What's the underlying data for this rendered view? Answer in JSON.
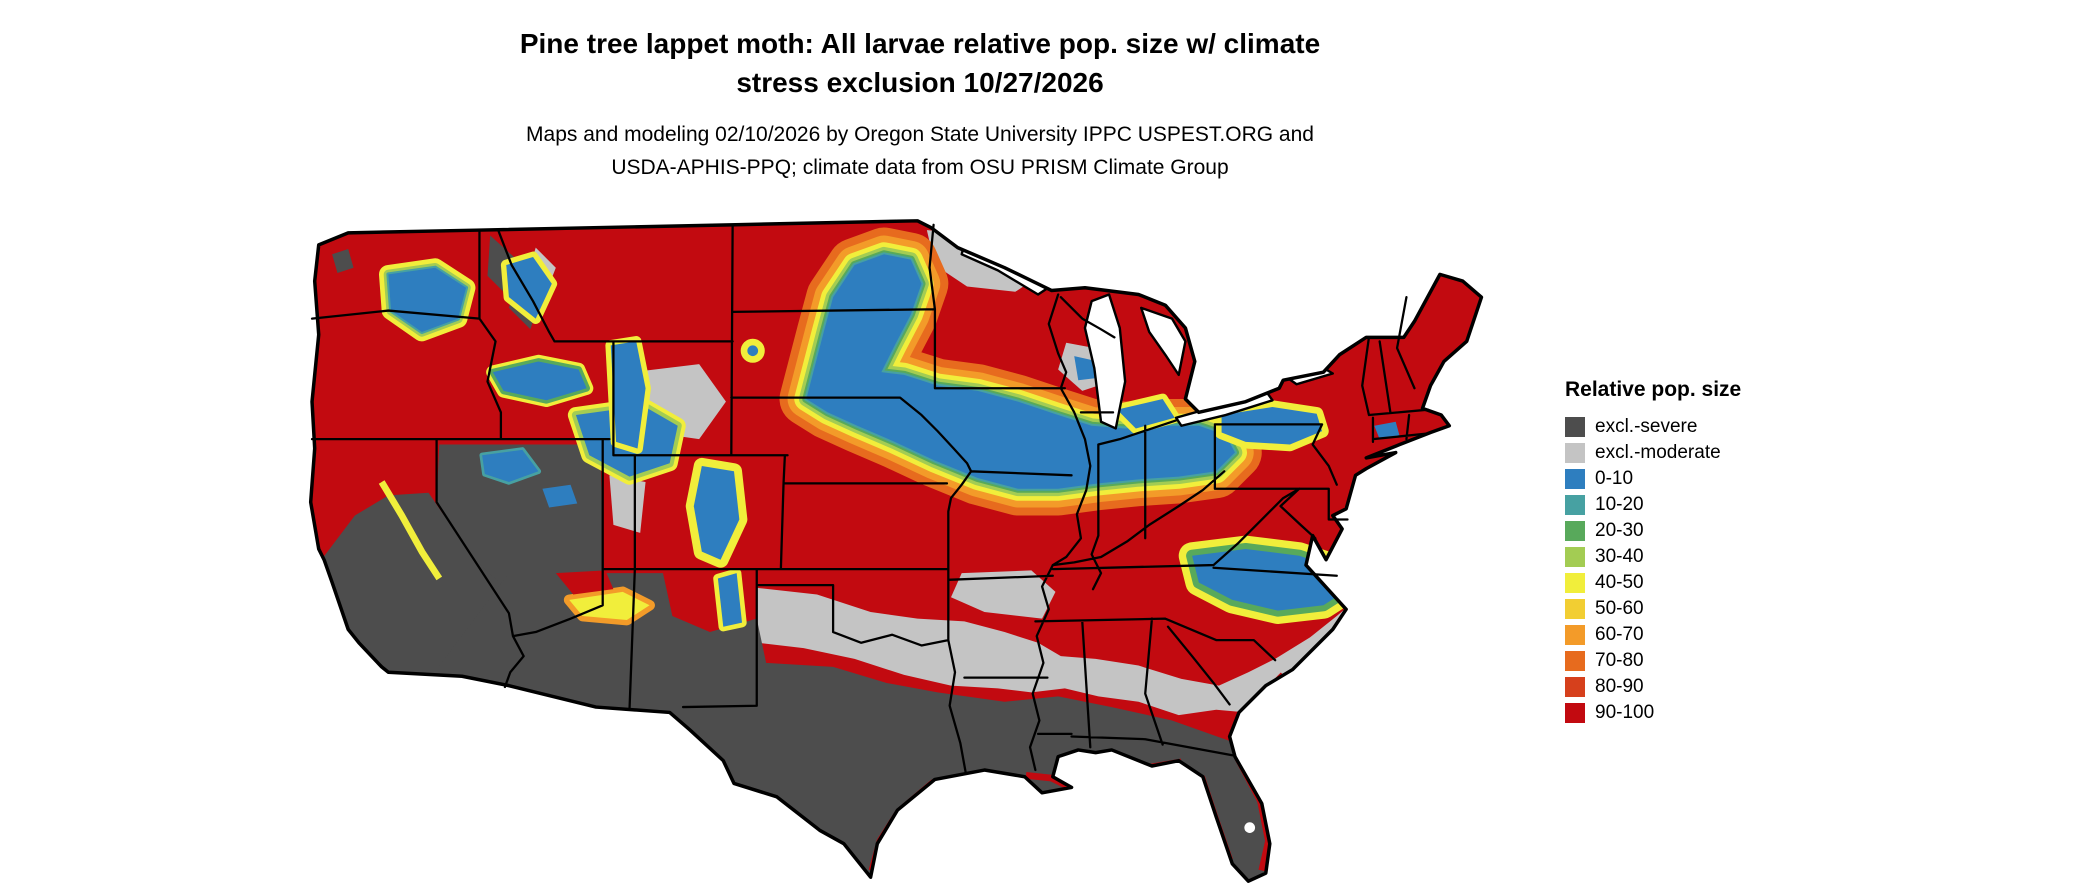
{
  "title": {
    "line1": "Pine tree lappet moth: All larvae relative pop. size w/ climate",
    "line2": "stress exclusion 10/27/2026"
  },
  "subtitle": {
    "line1": "Maps and modeling 02/10/2026 by Oregon State University IPPC USPEST.ORG and",
    "line2": "USDA-APHIS-PPQ; climate data from OSU PRISM Climate Group"
  },
  "legend": {
    "title": "Relative pop. size",
    "items": [
      {
        "label": "excl.-severe",
        "color": "#4d4d4d"
      },
      {
        "label": "excl.-moderate",
        "color": "#c4c4c4"
      },
      {
        "label": "0-10",
        "color": "#2e7ebf"
      },
      {
        "label": "10-20",
        "color": "#47a1a2"
      },
      {
        "label": "20-30",
        "color": "#58a95b"
      },
      {
        "label": "30-40",
        "color": "#a3cc53"
      },
      {
        "label": "40-50",
        "color": "#f1ee3b"
      },
      {
        "label": "50-60",
        "color": "#f2ce32"
      },
      {
        "label": "60-70",
        "color": "#f39b29"
      },
      {
        "label": "70-80",
        "color": "#e76b1e"
      },
      {
        "label": "80-90",
        "color": "#d6401c"
      },
      {
        "label": "90-100",
        "color": "#c20a10"
      }
    ]
  },
  "map": {
    "region": "contiguous United States",
    "type": "raster risk map with state borders",
    "water_color": "#ffffff",
    "border_color": "#000000"
  }
}
